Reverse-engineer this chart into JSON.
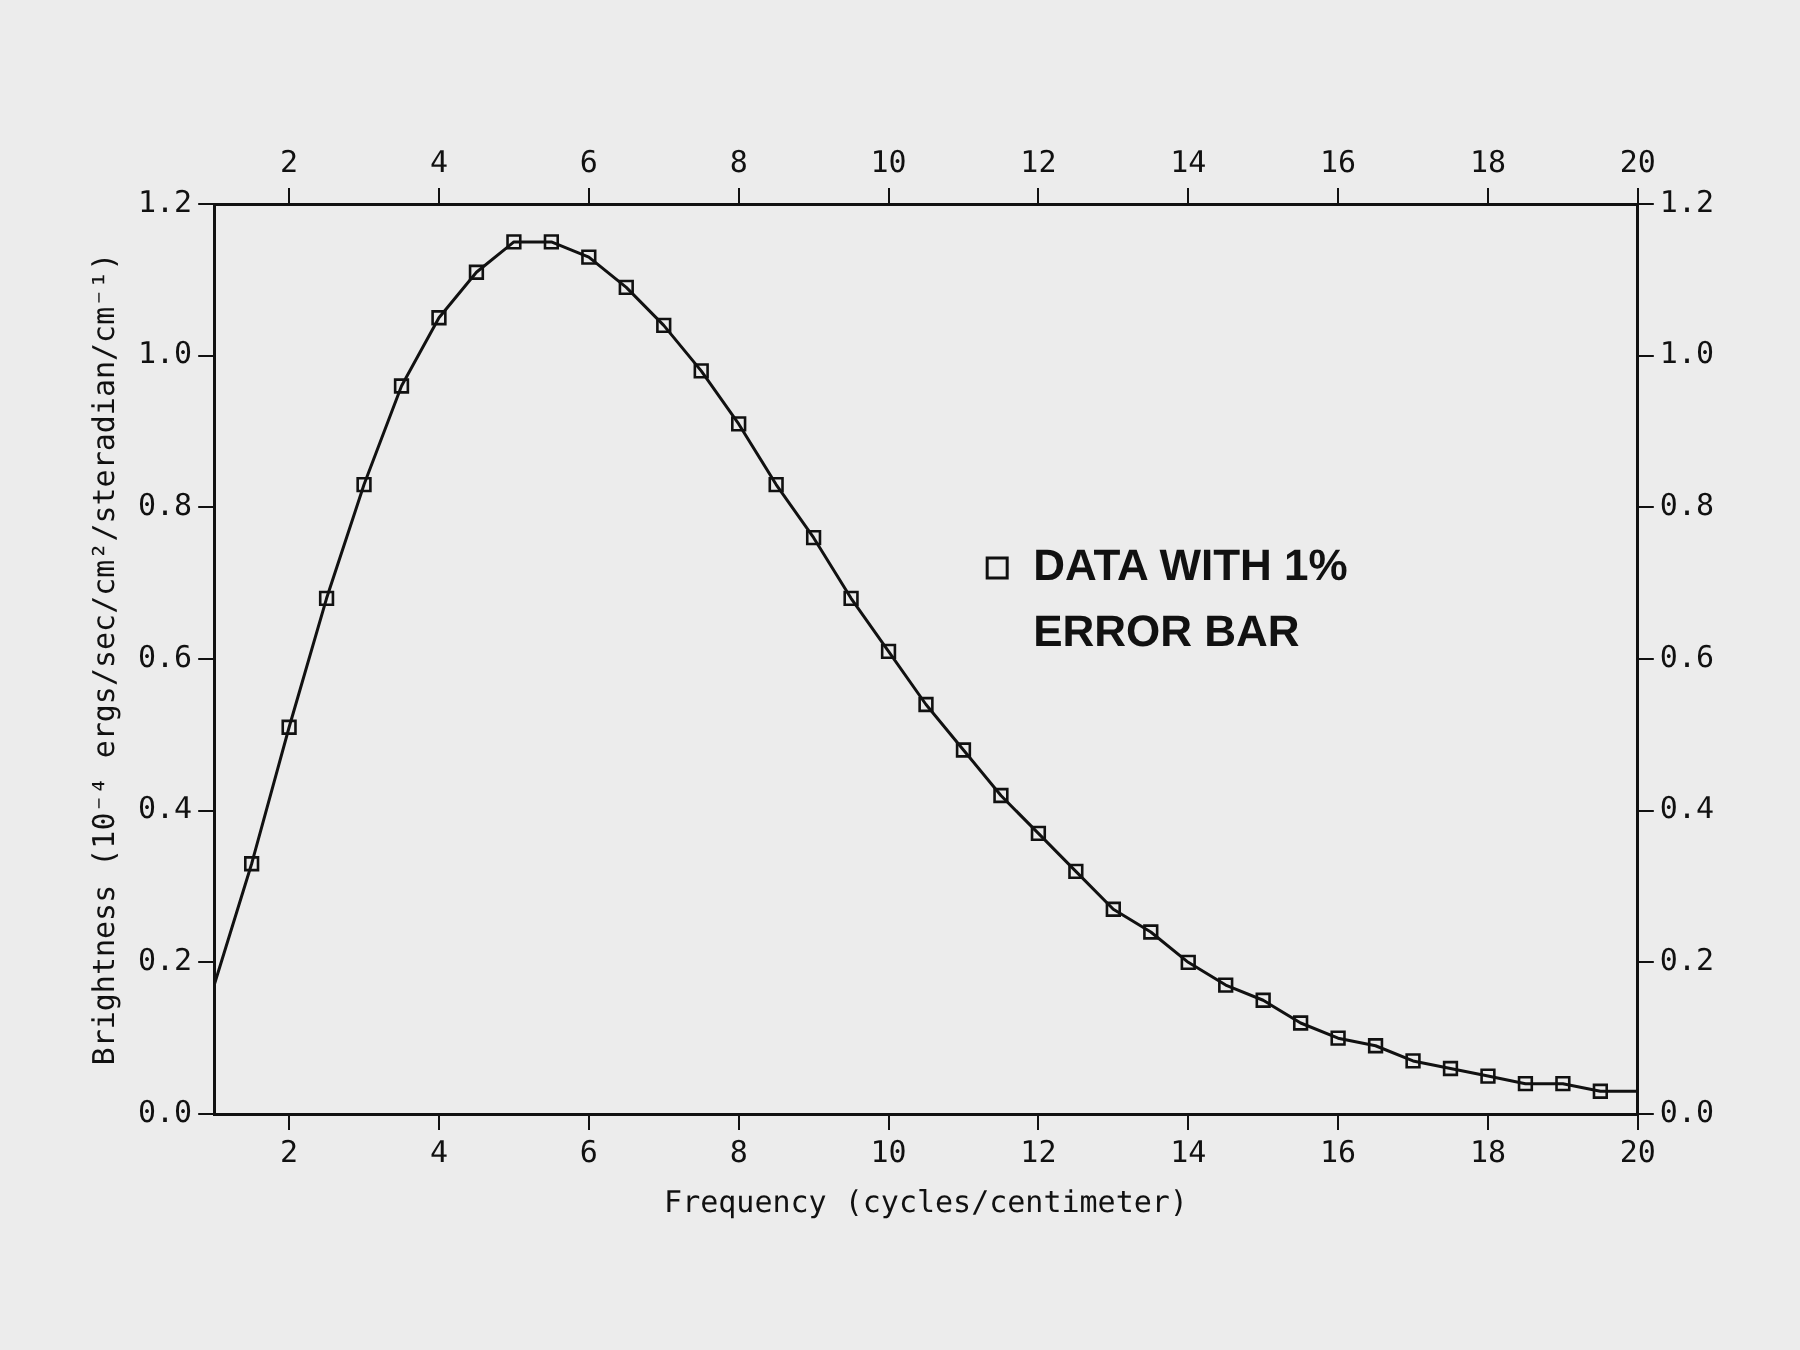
{
  "chart_data": {
    "type": "line",
    "xlabel": "Frequency (cycles/centimeter)",
    "ylabel": "Brightness (10⁻⁴ ergs/sec/cm²/steradian/cm⁻¹)",
    "xlim": [
      1,
      20
    ],
    "xticks": [
      2,
      4,
      6,
      8,
      10,
      12,
      14,
      16,
      18,
      20
    ],
    "x2lim": [
      1,
      20
    ],
    "x2ticks": [
      2,
      4,
      6,
      8,
      10,
      12,
      14,
      16,
      18,
      20
    ],
    "ylim": [
      0,
      1.2
    ],
    "yticks": [
      {
        "value": 0,
        "label": "0.0"
      },
      {
        "value": 0.2,
        "label": "0.2"
      },
      {
        "value": 0.4,
        "label": "0.4"
      },
      {
        "value": 0.6,
        "label": "0.6"
      },
      {
        "value": 0.8,
        "label": "0.8"
      },
      {
        "value": 1,
        "label": "1.0"
      },
      {
        "value": 1.2,
        "label": "1.2"
      }
    ],
    "y2lim": [
      0,
      1.2
    ],
    "y2ticks": [
      {
        "value": 0,
        "label": "0.0"
      },
      {
        "value": 0.2,
        "label": "0.2"
      },
      {
        "value": 0.4,
        "label": "0.4"
      },
      {
        "value": 0.6,
        "label": "0.6"
      },
      {
        "value": 0.8,
        "label": "0.8"
      },
      {
        "value": 1,
        "label": "1.0"
      },
      {
        "value": 1.2,
        "label": "1.2"
      }
    ],
    "grid": false,
    "legend": "right",
    "series": [
      {
        "color": "#111111",
        "marker": "none",
        "line_style": "solid",
        "x": [
          1,
          1.5,
          2,
          2.5,
          3,
          3.5,
          4,
          4.5,
          5,
          5.5,
          6,
          6.5,
          7,
          7.5,
          8,
          8.5,
          9,
          9.5,
          10,
          10.5,
          11,
          11.5,
          12,
          12.5,
          13,
          13.5,
          14,
          14.5,
          15,
          15.5,
          16,
          16.5,
          17,
          17.5,
          18,
          18.5,
          19,
          19.5,
          20
        ],
        "values": [
          0.17,
          0.33,
          0.51,
          0.68,
          0.83,
          0.96,
          1.05,
          1.11,
          1.15,
          1.15,
          1.13,
          1.09,
          1.04,
          0.98,
          0.91,
          0.83,
          0.76,
          0.68,
          0.61,
          0.54,
          0.48,
          0.42,
          0.37,
          0.32,
          0.27,
          0.24,
          0.2,
          0.17,
          0.15,
          0.12,
          0.1,
          0.09,
          0.07,
          0.06,
          0.05,
          0.04,
          0.04,
          0.03,
          0.03
        ]
      },
      {
        "type": "scatter",
        "name": "DATA WITH 1% ERROR BAR",
        "color": "#111111",
        "marker": "square",
        "x": [
          1.5,
          2,
          2.5,
          3,
          3.5,
          4,
          4.5,
          5,
          5.5,
          6,
          6.5,
          7,
          7.5,
          8,
          8.5,
          9,
          9.5,
          10,
          10.5,
          11,
          11.5,
          12,
          12.5,
          13,
          13.5,
          14,
          14.5,
          15,
          15.5,
          16,
          16.5,
          17,
          17.5,
          18,
          18.5,
          19,
          19.5
        ],
        "values": [
          0.33,
          0.51,
          0.68,
          0.83,
          0.96,
          1.05,
          1.11,
          1.15,
          1.15,
          1.13,
          1.09,
          1.04,
          0.98,
          0.91,
          0.83,
          0.76,
          0.68,
          0.61,
          0.54,
          0.48,
          0.42,
          0.37,
          0.32,
          0.27,
          0.24,
          0.2,
          0.17,
          0.15,
          0.12,
          0.1,
          0.09,
          0.07,
          0.06,
          0.05,
          0.04,
          0.04,
          0.03
        ]
      }
    ]
  }
}
